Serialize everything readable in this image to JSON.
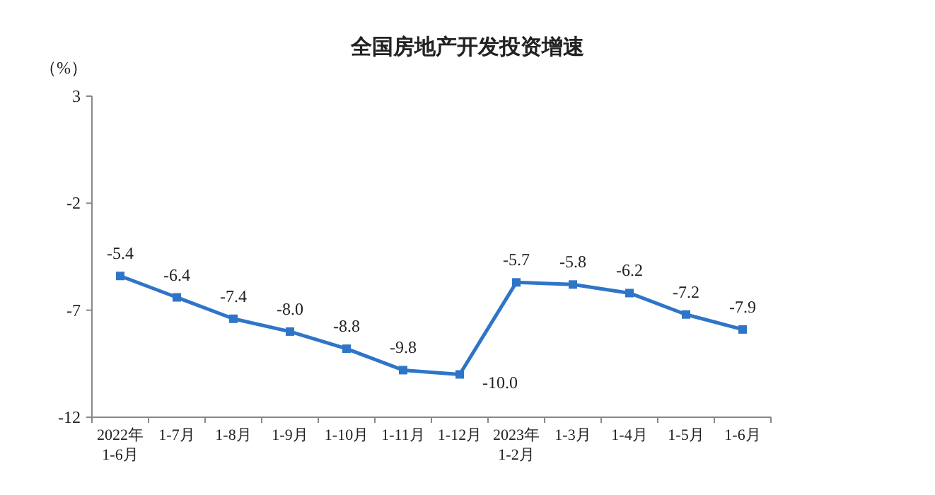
{
  "chart_data": {
    "type": "line",
    "title": "全国房地产开发投资增速",
    "ylabel": "（%）",
    "categories": [
      "2022年\n1-6月",
      "1-7月",
      "1-8月",
      "1-9月",
      "1-10月",
      "1-11月",
      "1-12月",
      "2023年\n1-2月",
      "1-3月",
      "1-4月",
      "1-5月",
      "1-6月"
    ],
    "series": [
      {
        "color": "#2e75c8",
        "values": [
          -5.4,
          -6.4,
          -7.4,
          -8.0,
          -8.8,
          -9.8,
          -10.0,
          -5.7,
          -5.8,
          -6.2,
          -7.2,
          -7.9
        ],
        "value_labels": [
          "-5.4",
          "-6.4",
          "-7.4",
          "-8.0",
          "-8.8",
          "-9.8",
          "-10.0",
          "-5.7",
          "-5.8",
          "-6.2",
          "-7.2",
          "-7.9"
        ]
      }
    ],
    "ylim": [
      -12,
      3
    ],
    "yticks": [
      -12,
      -7,
      -2,
      3
    ],
    "marker": "square",
    "grid": false
  }
}
